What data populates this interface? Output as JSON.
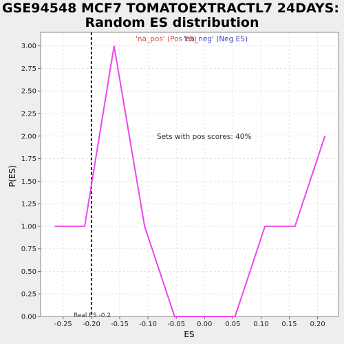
{
  "chart_data": {
    "type": "line",
    "title_line1": "GSE94548 MCF7 TOMATOEXTRACTL7 24DAYS:",
    "title_line2": "Random ES distribution",
    "xlabel": "ES",
    "ylabel": "P(ES)",
    "xlim": [
      -0.29,
      0.237
    ],
    "ylim": [
      0,
      3.15
    ],
    "x_ticks": [
      -0.25,
      -0.2,
      -0.15,
      -0.1,
      -0.05,
      0.0,
      0.05,
      0.1,
      0.15,
      0.2
    ],
    "x_tick_labels": [
      "-0.25",
      "-0.20",
      "-0.15",
      "-0.10",
      "-0.05",
      "0.00",
      "0.05",
      "0.10",
      "0.15",
      "0.20"
    ],
    "y_ticks": [
      0,
      0.25,
      0.5,
      0.75,
      1.0,
      1.25,
      1.5,
      1.75,
      2.0,
      2.25,
      2.5,
      2.75,
      3.0
    ],
    "y_tick_labels": [
      "0.00",
      "0.25",
      "0.50",
      "0.75",
      "1.00",
      "1.25",
      "1.50",
      "1.75",
      "2.00",
      "2.25",
      "2.50",
      "2.75",
      "3.00"
    ],
    "grid": true,
    "series": [
      {
        "color": "#ee44ee",
        "x": [
          -0.265,
          -0.212,
          -0.16,
          -0.106,
          -0.053,
          0.0,
          0.054,
          0.107,
          0.16,
          0.213
        ],
        "y": [
          1.0,
          1.0,
          3.0,
          1.0,
          0.0,
          0.0,
          0.0,
          1.0,
          1.0,
          2.0
        ]
      }
    ],
    "real_es": -0.2,
    "real_es_label": "Real ES -0.2",
    "legend": {
      "placement": "top-center",
      "pos_label": "'na_pos' (Pos ES)",
      "pos_color": "#dd4444",
      "neg_label": "'na_neg' (Neg ES)",
      "neg_color": "#4444cc"
    },
    "annotation": "Sets with pos scores: 40%"
  }
}
